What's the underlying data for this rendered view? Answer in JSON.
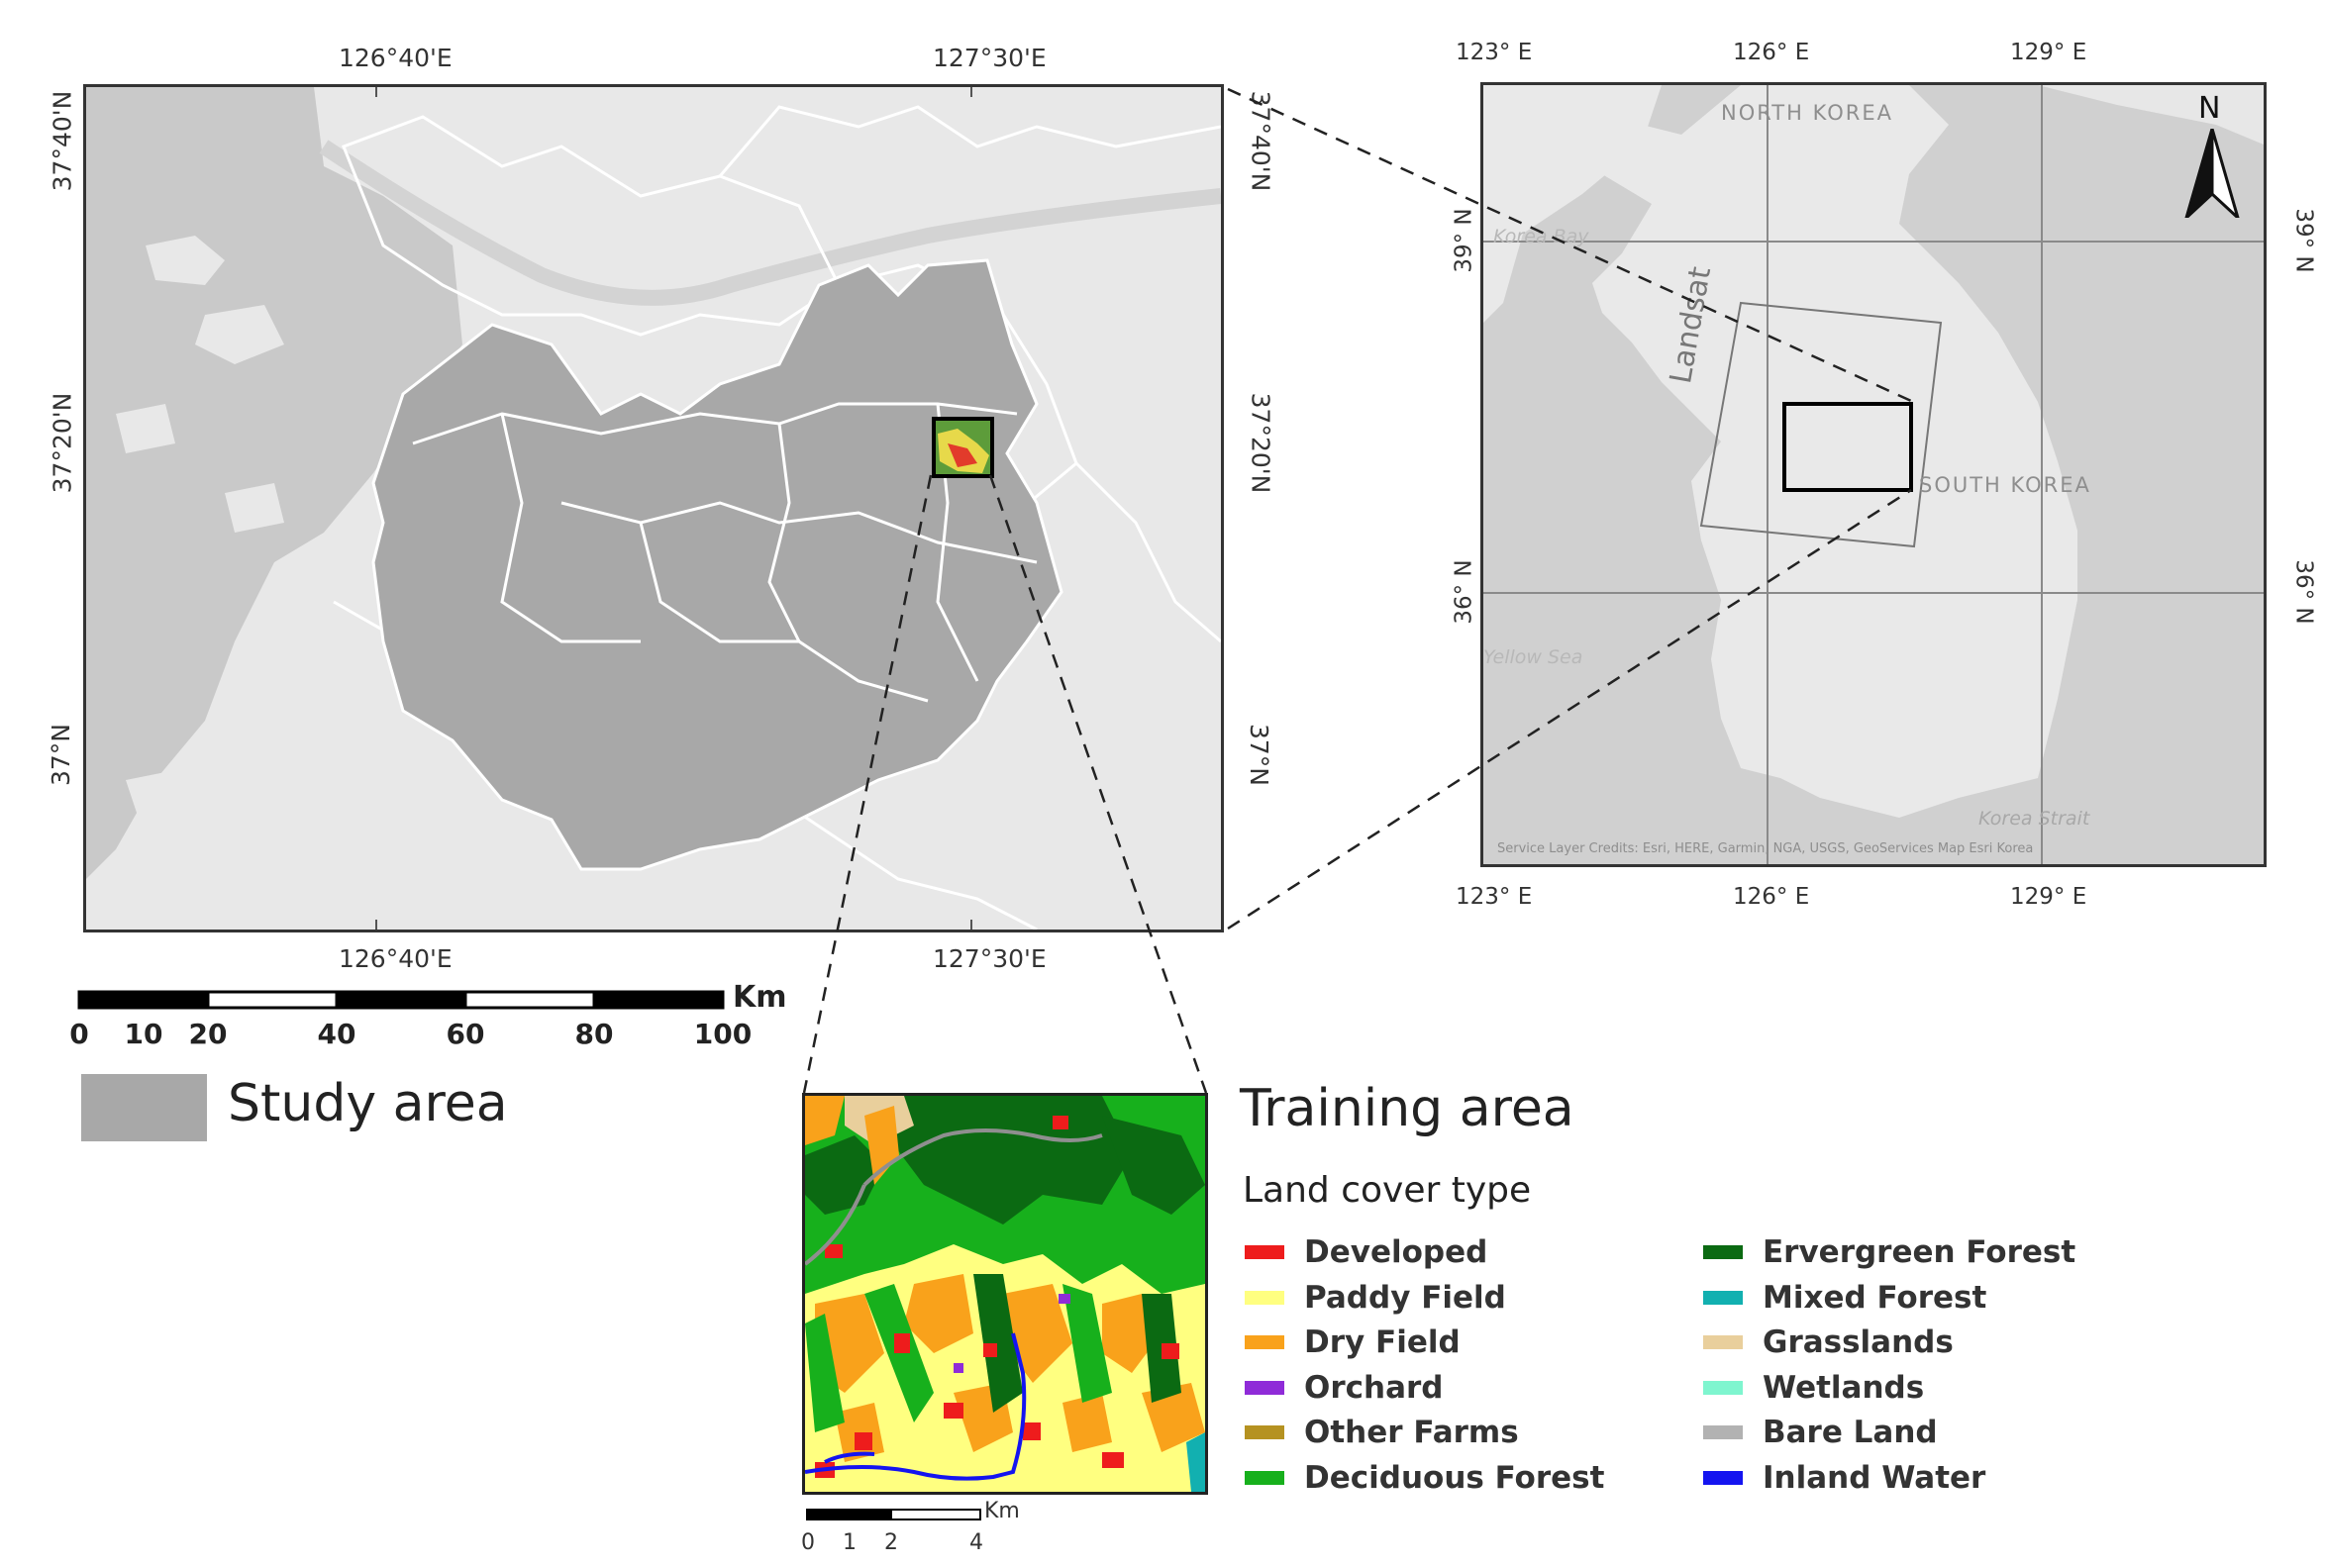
{
  "main_map": {
    "top_labels": [
      "126°40'E",
      "127°30'E"
    ],
    "bottom_labels": [
      "126°40'E",
      "127°30'E"
    ],
    "left_labels": [
      "37°40'N",
      "37°20'N",
      "37°N"
    ],
    "right_labels": [
      "37°40'N",
      "37°20'N",
      "37°N"
    ]
  },
  "inset_map": {
    "top_labels": [
      "123° E",
      "126° E",
      "129° E"
    ],
    "bottom_labels": [
      "123° E",
      "126° E",
      "129° E"
    ],
    "left_labels": [
      "39° N",
      "36° N"
    ],
    "right_labels": [
      "39° N",
      "36° N"
    ],
    "north_korea": "NORTH KOREA",
    "south_korea": "SOUTH KOREA",
    "landsat": "Landsat",
    "bay": "Korea Bay",
    "yellow_sea": "Yellow Sea",
    "strait": "Korea Strait",
    "credits": "Service Layer Credits: Esri, HERE, Garmin, NGA, USGS, GeoServices Map Esri Korea",
    "north_arrow": "N"
  },
  "scale_bar": {
    "unit": "Km",
    "ticks": [
      "0",
      "10",
      "20",
      "40",
      "60",
      "80",
      "100"
    ]
  },
  "training_scale": {
    "unit": "Km",
    "ticks": [
      "0",
      "1",
      "2",
      "4"
    ]
  },
  "legend": {
    "study_area": "Study area",
    "training_area": "Training area",
    "land_cover_title": "Land cover type",
    "classes": [
      {
        "name": "Developed",
        "color": "#ee1c1c"
      },
      {
        "name": "Paddy Field",
        "color": "#ffff80"
      },
      {
        "name": "Dry Field",
        "color": "#f9a21b"
      },
      {
        "name": "Orchard",
        "color": "#8f2bd8"
      },
      {
        "name": "Other Farms",
        "color": "#b59221"
      },
      {
        "name": "Deciduous Forest",
        "color": "#17b01c"
      },
      {
        "name": "Ervergreen Forest",
        "color": "#0b6a12"
      },
      {
        "name": "Mixed Forest",
        "color": "#12b0b0"
      },
      {
        "name": "Grasslands",
        "color": "#e9cf9c"
      },
      {
        "name": "Wetlands",
        "color": "#7ff5cf"
      },
      {
        "name": "Bare Land",
        "color": "#b2b2b2"
      },
      {
        "name": "Inland Water",
        "color": "#1414f0"
      }
    ]
  }
}
